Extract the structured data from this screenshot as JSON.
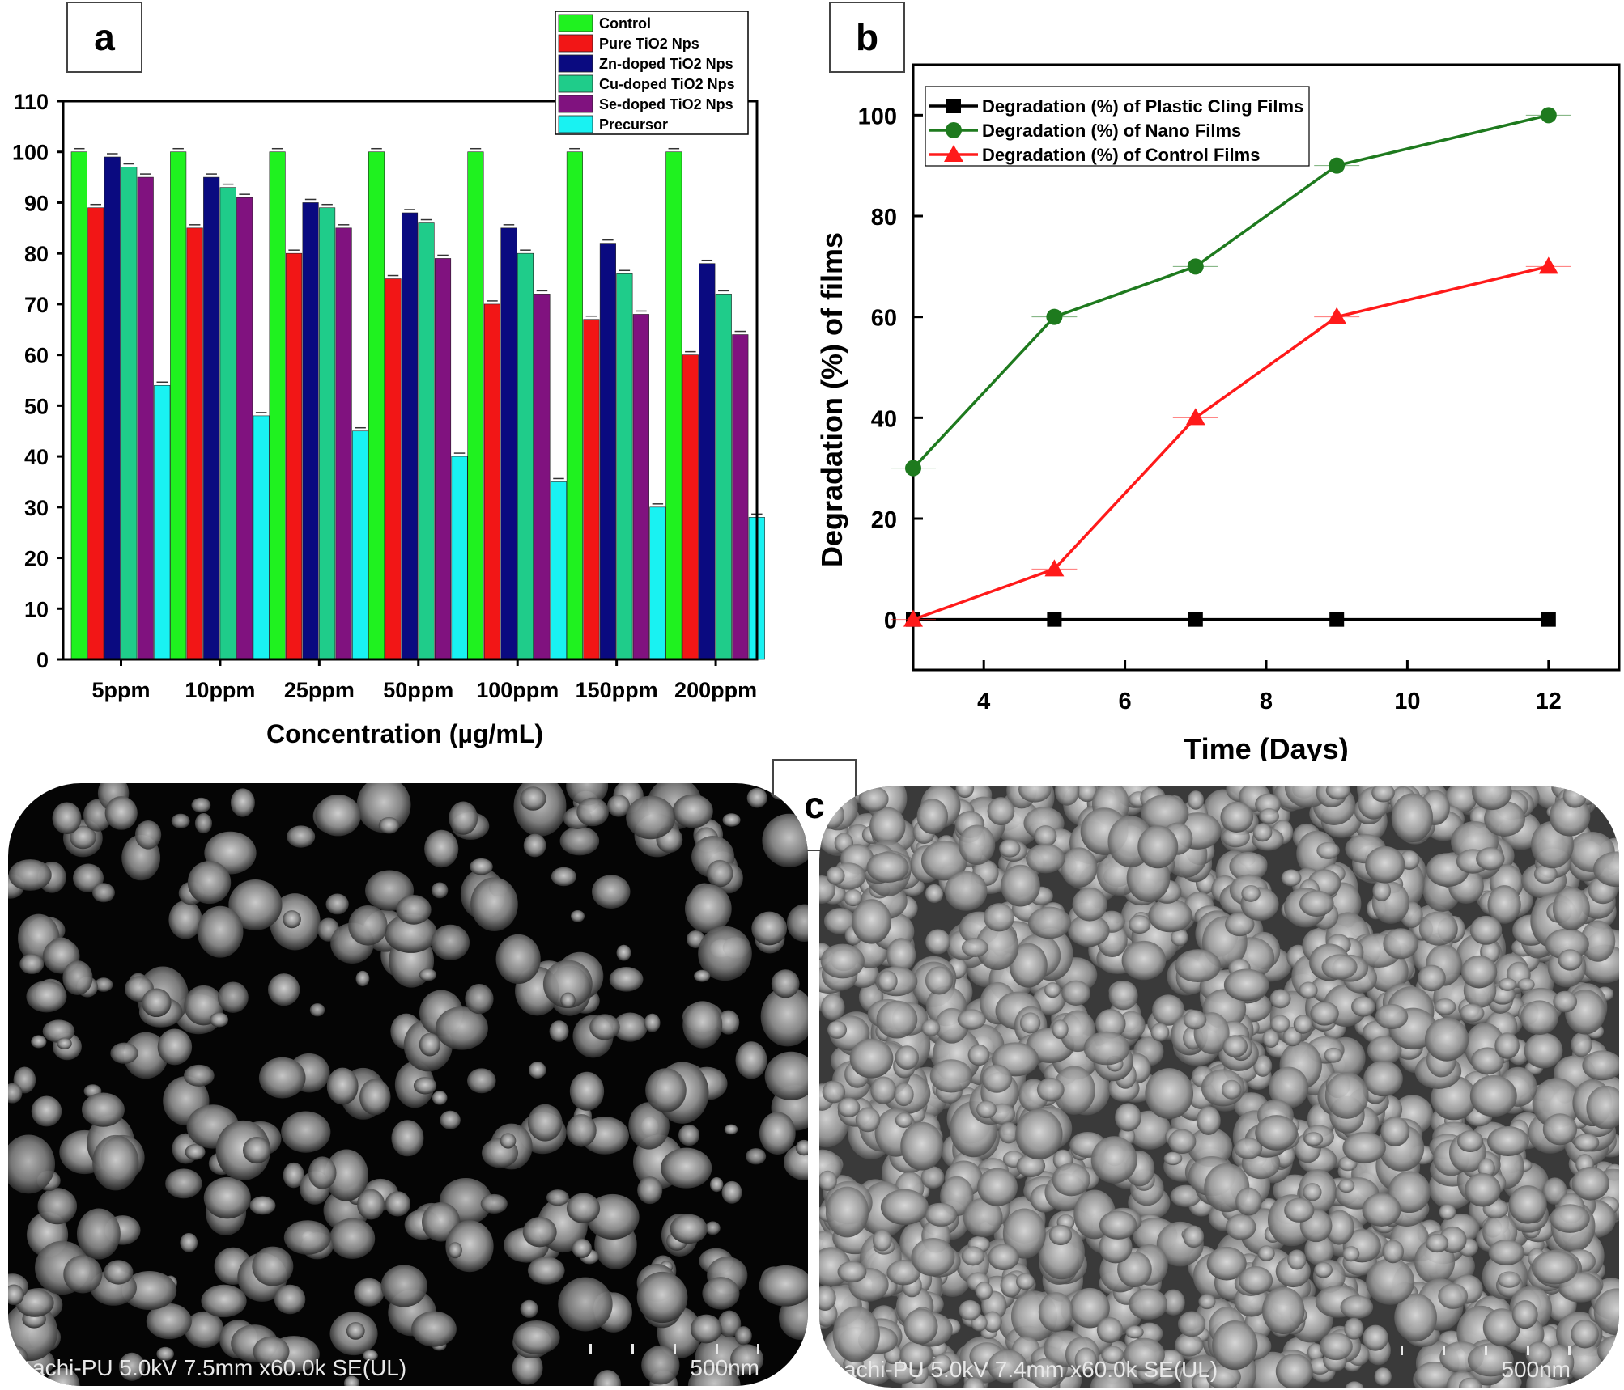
{
  "labels": {
    "a": "a",
    "b": "b",
    "c": "c"
  },
  "colors": {
    "control": "#1FF21F",
    "pure": "#F21616",
    "zn": "#0A0A80",
    "cu": "#1FCC8A",
    "se": "#80127F",
    "precursor": "#19F2F2",
    "cling": "#000000",
    "nano": "#1E7A1E",
    "controlFilms": "#FF1A1A"
  },
  "chart_data": [
    {
      "type": "bar",
      "categories": [
        "5ppm",
        "10ppm",
        "25ppm",
        "50ppm",
        "100ppm",
        "150ppm",
        "200ppm"
      ],
      "xlabel": "Concentration (µg/mL)",
      "ylabel": "",
      "ylim": [
        0,
        110
      ],
      "yticks": [
        0,
        10,
        20,
        30,
        40,
        50,
        60,
        70,
        80,
        90,
        100,
        110
      ],
      "legend": "top-right",
      "series": [
        {
          "name": "Control",
          "values": [
            100,
            100,
            100,
            100,
            100,
            100,
            100
          ]
        },
        {
          "name": "Pure TiO2 Nps",
          "values": [
            89,
            85,
            80,
            75,
            70,
            67,
            60
          ]
        },
        {
          "name": "Zn-doped TiO2 Nps",
          "values": [
            99,
            95,
            90,
            88,
            85,
            82,
            78
          ]
        },
        {
          "name": "Cu-doped TiO2 Nps",
          "values": [
            97,
            93,
            89,
            86,
            80,
            76,
            72
          ]
        },
        {
          "name": "Se-doped TiO2 Nps",
          "values": [
            95,
            91,
            85,
            79,
            72,
            68,
            64
          ]
        },
        {
          "name": "Precursor",
          "values": [
            54,
            48,
            45,
            40,
            35,
            30,
            28
          ]
        }
      ]
    },
    {
      "type": "line",
      "xlabel": "Time (Days)",
      "ylabel": "Degradation (%) of films",
      "xlim": [
        3,
        13
      ],
      "ylim": [
        -10,
        110
      ],
      "xticks": [
        4,
        6,
        8,
        10,
        12
      ],
      "yticks": [
        0,
        20,
        40,
        60,
        80,
        100
      ],
      "legend": "top-left",
      "series": [
        {
          "name": "Degradation (%) of Plastic Cling Films",
          "x": [
            3,
            5,
            7,
            9,
            12
          ],
          "y": [
            0,
            0,
            0,
            0,
            0
          ]
        },
        {
          "name": "Degradation (%) of Nano Films",
          "x": [
            3,
            5,
            7,
            9,
            12
          ],
          "y": [
            30,
            60,
            70,
            90,
            100
          ]
        },
        {
          "name": "Degradation (%) of Control Films",
          "x": [
            3,
            5,
            7,
            9,
            12
          ],
          "y": [
            0,
            10,
            40,
            60,
            70
          ]
        }
      ]
    }
  ],
  "sem": [
    {
      "info": "achi-PU 5.0kV 7.5mm x60.0k SE(UL)",
      "scale": "500nm"
    },
    {
      "info": "achi-PU 5.0kV 7.4mm x60.0k SE(UL)",
      "scale": "500nm"
    }
  ]
}
